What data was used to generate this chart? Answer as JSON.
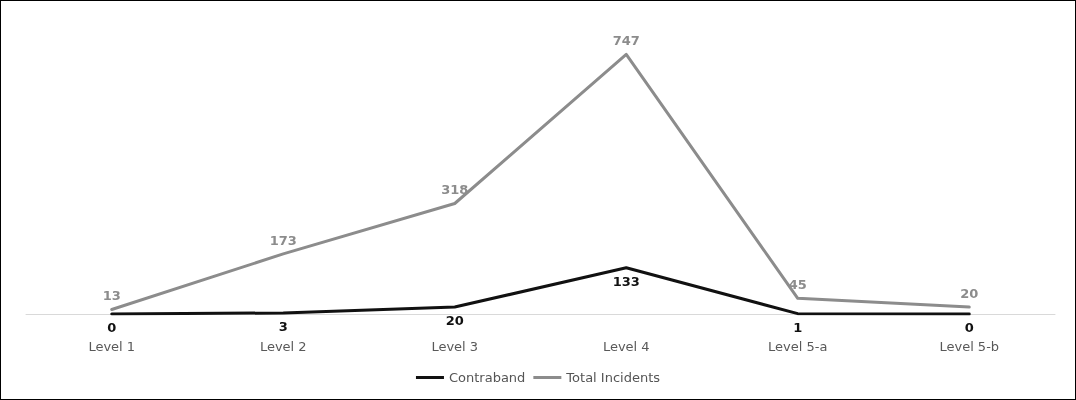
{
  "chart_data": {
    "type": "line",
    "categories": [
      "Level 1",
      "Level 2",
      "Level 3",
      "Level 4",
      "Level 5-a",
      "Level 5-b"
    ],
    "series": [
      {
        "name": "Contraband",
        "color": "#111111",
        "values": [
          0,
          3,
          20,
          133,
          1,
          0
        ]
      },
      {
        "name": "Total Incidents",
        "color": "#8c8c8c",
        "values": [
          13,
          173,
          318,
          747,
          45,
          20
        ]
      }
    ],
    "data_labels": true,
    "legend": "bottom",
    "tick_labels": "x",
    "marker": "none",
    "line_style": "solid",
    "grid": false
  }
}
